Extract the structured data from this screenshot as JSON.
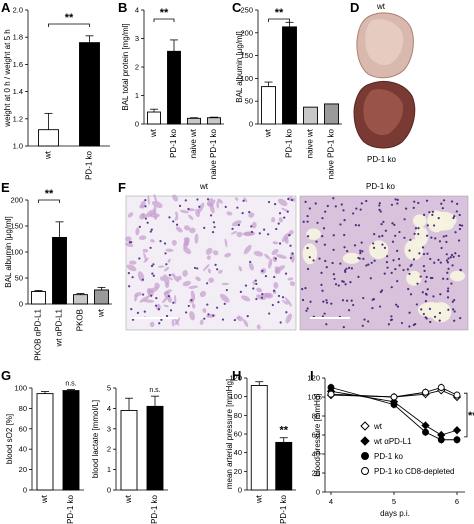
{
  "figure": {
    "panels": {
      "A": "A",
      "B": "B",
      "C": "C",
      "D": "D",
      "E": "E",
      "F": "F",
      "G": "G",
      "H": "H",
      "I": "I"
    },
    "images": {
      "D_wt": "wt",
      "D_ko": "PD-1 ko",
      "F_wt": "wt",
      "F_ko": "PD-1 ko"
    },
    "colors": {
      "wt": "#ffffff",
      "ko": "#000000",
      "naive": "#c8c8c8",
      "naive_dark": "#9a9a9a"
    }
  },
  "chart_data": [
    {
      "id": "A",
      "type": "bar",
      "categories": [
        "wt",
        "PD-1 ko"
      ],
      "values": [
        1.12,
        1.76
      ],
      "errors": [
        0.12,
        0.05
      ],
      "ylabel": "weight at 0 h / weight at 5 h",
      "ylim": [
        1.0,
        2.0
      ],
      "yticks": [
        "1.0",
        "1.2",
        "1.4",
        "1.6",
        "1.8",
        "2.0"
      ],
      "significance": "**"
    },
    {
      "id": "B",
      "type": "bar",
      "categories": [
        "wt",
        "PD-1 ko",
        "naive wt",
        "naive PD-1 ko"
      ],
      "values": [
        0.42,
        2.55,
        0.2,
        0.22
      ],
      "errors": [
        0.1,
        0.4,
        0.02,
        0.02
      ],
      "ylabel": "BAL total protein [mg/ml]",
      "ylim": [
        0,
        4
      ],
      "yticks": [
        "0",
        "1",
        "2",
        "3",
        "4"
      ],
      "significance": "**"
    },
    {
      "id": "C",
      "type": "bar",
      "categories": [
        "wt",
        "PD-1 ko",
        "naive wt",
        "naive PD-1 ko"
      ],
      "values": [
        82,
        213,
        37,
        44
      ],
      "errors": [
        10,
        10,
        0,
        0
      ],
      "ylabel": "BAL albumin [µg/ml]",
      "ylim": [
        0,
        250
      ],
      "yticks": [
        "0",
        "50",
        "100",
        "150",
        "200",
        "250"
      ],
      "significance": "**"
    },
    {
      "id": "E",
      "type": "bar",
      "categories": [
        "PKOB αPD-L1",
        "wt αPD-L1",
        "PKOB",
        "wt"
      ],
      "values": [
        24,
        128,
        18,
        27
      ],
      "errors": [
        2,
        30,
        2,
        5
      ],
      "ylabel": "BAL albumin [µg/ml]",
      "ylim": [
        0,
        200
      ],
      "yticks": [
        "0",
        "50",
        "100",
        "150",
        "200"
      ],
      "significance": "**"
    },
    {
      "id": "G1",
      "type": "bar",
      "categories": [
        "wt",
        "PD-1 ko"
      ],
      "values": [
        94.5,
        97.5
      ],
      "errors": [
        2,
        1
      ],
      "ylabel": "blood sO2 [%]",
      "ylim": [
        0,
        100
      ],
      "yticks": [
        "0",
        "20",
        "40",
        "60",
        "80",
        "100"
      ],
      "significance": "n.s."
    },
    {
      "id": "G2",
      "type": "bar",
      "categories": [
        "wt",
        "PD-1 ko"
      ],
      "values": [
        3.9,
        4.1
      ],
      "errors": [
        0.6,
        0.5
      ],
      "ylabel": "blood lactate [mmol/L]",
      "ylim": [
        0,
        5
      ],
      "yticks": [
        "0",
        "1",
        "2",
        "3",
        "4",
        "5"
      ],
      "significance": "n.s."
    },
    {
      "id": "H",
      "type": "bar",
      "categories": [
        "wt",
        "PD-1 ko"
      ],
      "values": [
        112,
        51
      ],
      "errors": [
        4,
        5
      ],
      "ylabel": "mean arterial pressure [mmHg]",
      "ylim": [
        0,
        120
      ],
      "yticks": [
        "0",
        "20",
        "40",
        "60",
        "80",
        "100",
        "120"
      ],
      "significance": "**"
    },
    {
      "id": "I",
      "type": "line",
      "x": [
        4,
        5,
        5.5,
        5.75,
        6
      ],
      "xlabel": "days p.i.",
      "ylabel": "blood pressure [mmHg]",
      "xlim": [
        4,
        6
      ],
      "xticks": [
        "4",
        "5",
        "6"
      ],
      "ylim": [
        0,
        120
      ],
      "yticks": [
        "0",
        "20",
        "40",
        "60",
        "80",
        "100",
        "120"
      ],
      "significance": "**",
      "series": [
        {
          "name": "wt",
          "marker": "diamond-open",
          "values": [
            102,
            100,
            103,
            107,
            100
          ]
        },
        {
          "name": "wt αPD-L1",
          "marker": "diamond-filled",
          "values": [
            106,
            95,
            70,
            60,
            65
          ]
        },
        {
          "name": "PD-1 ko",
          "marker": "circle-filled",
          "values": [
            110,
            92,
            63,
            55,
            55
          ]
        },
        {
          "name": "PD-1 ko CD8-depleted",
          "marker": "circle-open",
          "values": [
            103,
            100,
            105,
            110,
            102
          ]
        }
      ]
    }
  ]
}
